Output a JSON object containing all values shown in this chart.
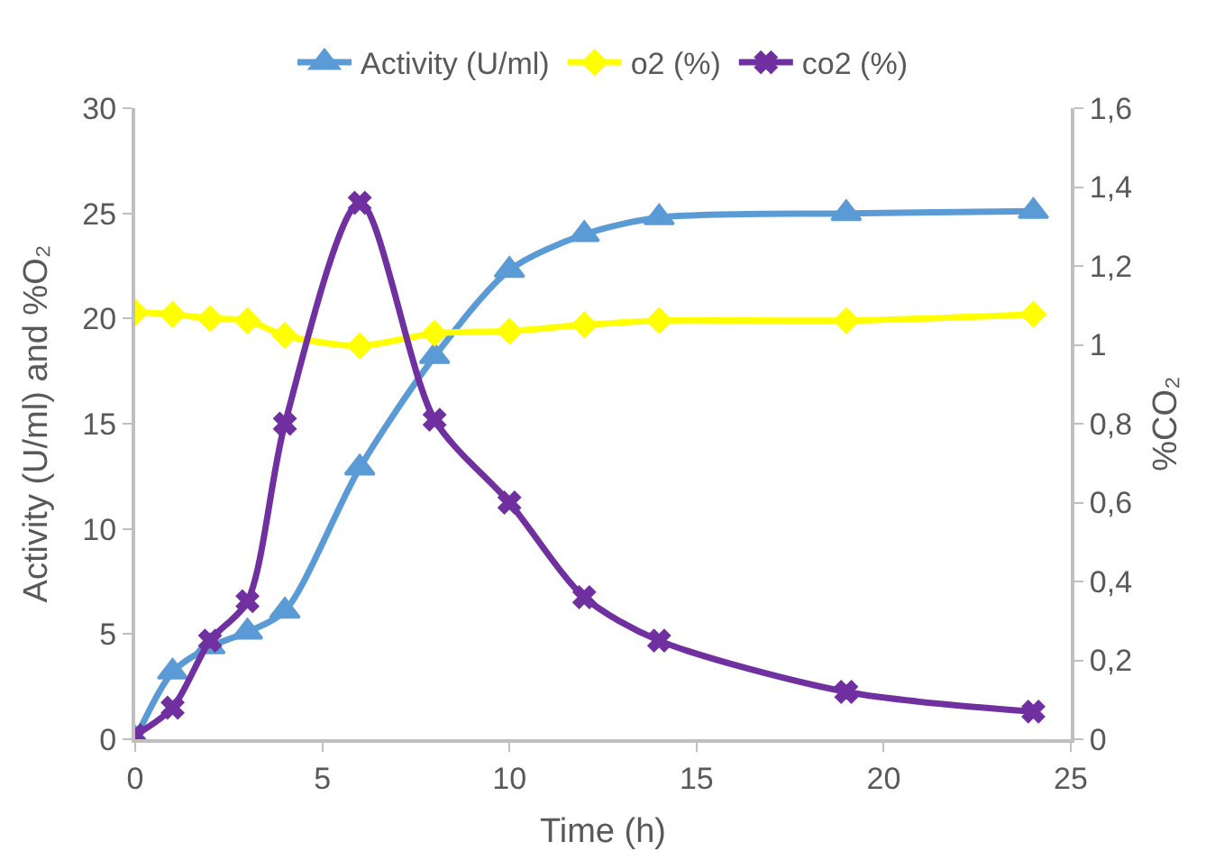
{
  "chart_data": {
    "type": "line",
    "xlabel": "Time (h)",
    "ylabel": "Activity (U/ml) and %O₂",
    "y2label": "%CO₂",
    "x": [
      0,
      1,
      2,
      3,
      4,
      6,
      8,
      10,
      12,
      14,
      19,
      24
    ],
    "series": [
      {
        "name": "Activity (U/ml)",
        "color": "#5b9bd5",
        "marker": "triangle",
        "values": [
          0,
          3.2,
          4.4,
          5.1,
          6.1,
          12.9,
          18.2,
          22.3,
          24,
          24.8,
          25,
          25.1
        ]
      },
      {
        "name": "o2 (%)",
        "color": "#ffff00",
        "marker": "diamond",
        "values": [
          20.3,
          20.2,
          20,
          19.9,
          19.2,
          18.7,
          19.3,
          19.4,
          19.7,
          19.9,
          19.9,
          20.2
        ]
      },
      {
        "name": "co2 (%)",
        "color": "#7030a0",
        "marker": "cross",
        "axis": "y2",
        "values": [
          0.01,
          0.08,
          0.25,
          0.35,
          0.8,
          1.36,
          0.81,
          0.6,
          0.36,
          0.25,
          0.12,
          0.07
        ]
      }
    ],
    "xlim": [
      0,
      25
    ],
    "xticks": [
      0,
      5,
      10,
      15,
      20,
      25
    ],
    "ylim": [
      0,
      30
    ],
    "yticks": [
      0,
      5,
      10,
      15,
      20,
      25,
      30
    ],
    "y2lim": [
      0,
      1.6
    ],
    "y2ticks": [
      0,
      {
        "value": 0.2,
        "label": "0,2"
      },
      {
        "value": 0.4,
        "label": "0,4"
      },
      {
        "value": 0.6,
        "label": "0,6"
      },
      {
        "value": 0.8,
        "label": "0,8"
      },
      1,
      {
        "value": 1.2,
        "label": "1,2"
      },
      {
        "value": 1.4,
        "label": "1,4"
      },
      {
        "value": 1.6,
        "label": "1,6"
      }
    ],
    "grid": false,
    "legend": "top",
    "line_style": "solid"
  }
}
